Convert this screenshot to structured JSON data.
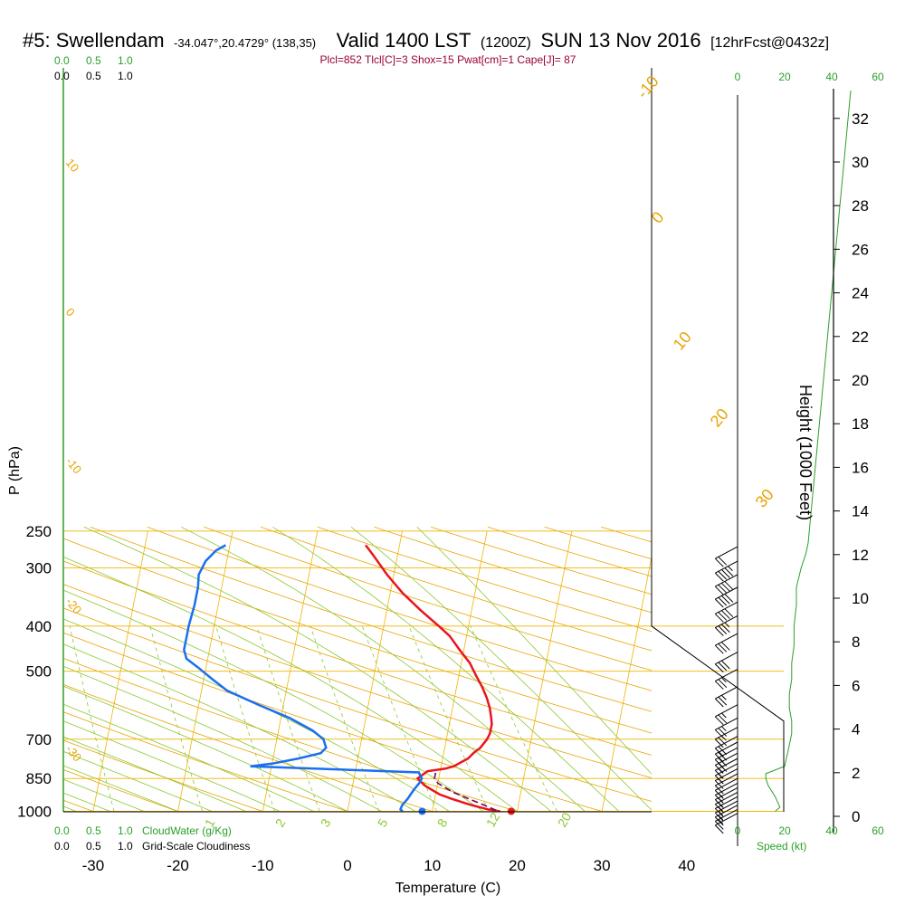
{
  "header": {
    "station": "#5: Swellendam",
    "coords": "-34.047°,20.4729° (138,35)",
    "valid": "Valid 1400 LST",
    "zulu": "(1200Z)",
    "date": "SUN 13 Nov 2016",
    "forecast": "[12hrFcst@0432z]"
  },
  "indices": "Plcl=852 Tlcl[C]=3 Shox=15 Pwat[cm]=1 Cape[J]= 87",
  "colors": {
    "isotherm": "#f0b400",
    "dry_adiabat": "#e8a300",
    "moist_adiabat": "#8cc832",
    "mixing_ratio": "#8cc832",
    "temperature": "#e8161b",
    "dewpoint": "#1b6ff0",
    "parcel": "#77005a",
    "green": "#2aa02a"
  },
  "top_scales": {
    "cloudwater": [
      "0.0",
      "0.5",
      "1.0"
    ],
    "cloudiness": [
      "0.0",
      "0.5",
      "1.0"
    ],
    "speed": [
      "0",
      "20",
      "40",
      "60"
    ]
  },
  "bottom_scales": {
    "cloudwater_ticks": [
      "0.0",
      "0.5",
      "1.0"
    ],
    "cloudwater_label": "CloudWater (g/Kg)",
    "cloudiness_ticks": [
      "0.0",
      "0.5",
      "1.0"
    ],
    "cloudiness_label": "Grid-Scale Cloudiness",
    "speed_ticks": [
      "0",
      "20",
      "40",
      "60"
    ],
    "speed_label": "Speed (kt)"
  },
  "chart_data": {
    "type": "line",
    "title": "#5: Swellendam -34.047°,20.4729° (138,35) Valid 1400 LST (1200Z) SUN 13 Nov 2016 [12hrFcst@0432z]",
    "xlabel": "Temperature (C)",
    "ylabel": "P (hPa)",
    "y2label": "Height (1000 Feet)",
    "x_ticks": [
      -30,
      -20,
      -10,
      0,
      10,
      20,
      30,
      40
    ],
    "xlim": [
      -34,
      45
    ],
    "p_ticks": [
      250,
      300,
      400,
      500,
      700,
      850,
      1000
    ],
    "ylim_hpa": [
      1000,
      250
    ],
    "y_scale": "log",
    "height_ticks": [
      0,
      2,
      4,
      6,
      8,
      10,
      12,
      14,
      16,
      18,
      20,
      22,
      24,
      26,
      28,
      30,
      32
    ],
    "dry_adiabat_labels": [
      -10,
      0,
      10,
      20,
      30
    ],
    "moist_adiabat_labels_left": [
      10,
      0,
      -10,
      -20,
      -30
    ],
    "mixing_ratio_labels": [
      1,
      2,
      3,
      5,
      8,
      12,
      20
    ],
    "series": [
      {
        "name": "Temperature",
        "points": [
          [
            18.0,
            1000
          ],
          [
            16.5,
            990
          ],
          [
            14.5,
            970
          ],
          [
            12.0,
            940
          ],
          [
            10.5,
            920
          ],
          [
            9.5,
            900
          ],
          [
            8.5,
            880
          ],
          [
            7.5,
            850
          ],
          [
            8.5,
            820
          ],
          [
            10.5,
            810
          ],
          [
            11.5,
            800
          ],
          [
            12.0,
            790
          ],
          [
            13.0,
            770
          ],
          [
            13.5,
            750
          ],
          [
            14.2,
            730
          ],
          [
            14.8,
            700
          ],
          [
            15.0,
            680
          ],
          [
            15.0,
            650
          ],
          [
            14.8,
            630
          ],
          [
            14.4,
            600
          ],
          [
            13.8,
            570
          ],
          [
            13.0,
            540
          ],
          [
            12.0,
            510
          ],
          [
            11.0,
            480
          ],
          [
            9.5,
            450
          ],
          [
            8.0,
            420
          ],
          [
            6.5,
            400
          ],
          [
            4.0,
            370
          ],
          [
            1.5,
            340
          ],
          [
            -0.8,
            310
          ],
          [
            -3.0,
            280
          ],
          [
            -4.0,
            268
          ]
        ]
      },
      {
        "name": "Dewpoint",
        "points": [
          [
            6.5,
            1000
          ],
          [
            6.2,
            990
          ],
          [
            6.3,
            970
          ],
          [
            6.8,
            940
          ],
          [
            7.3,
            900
          ],
          [
            7.8,
            870
          ],
          [
            8.0,
            850
          ],
          [
            7.5,
            825
          ],
          [
            -12.5,
            800
          ],
          [
            -10.0,
            790
          ],
          [
            -7.0,
            770
          ],
          [
            -4.5,
            750
          ],
          [
            -4.0,
            730
          ],
          [
            -4.5,
            700
          ],
          [
            -6.0,
            670
          ],
          [
            -9.0,
            630
          ],
          [
            -13.0,
            590
          ],
          [
            -17.0,
            550
          ],
          [
            -19.0,
            520
          ],
          [
            -21.0,
            490
          ],
          [
            -22.5,
            470
          ],
          [
            -23.0,
            450
          ],
          [
            -23.0,
            420
          ],
          [
            -23.0,
            400
          ],
          [
            -22.8,
            360
          ],
          [
            -22.8,
            330
          ],
          [
            -23.0,
            310
          ],
          [
            -22.5,
            290
          ],
          [
            -21.5,
            275
          ],
          [
            -20.5,
            268
          ]
        ]
      },
      {
        "name": "Parcel",
        "points": [
          [
            17.5,
            995
          ],
          [
            16.0,
            970
          ],
          [
            14.0,
            940
          ],
          [
            12.0,
            910
          ],
          [
            11.0,
            890
          ],
          [
            10.0,
            870
          ],
          [
            9.5,
            850
          ],
          [
            9.5,
            830
          ],
          [
            9.5,
            815
          ]
        ]
      }
    ],
    "surface_temperature": 19.3,
    "surface_dewpoint": 8.8,
    "winds_kt": [
      {
        "p": 270,
        "speed": 20,
        "dir": 300
      },
      {
        "p": 290,
        "speed": 45,
        "dir": 280
      },
      {
        "p": 310,
        "speed": 40,
        "dir": 280
      },
      {
        "p": 330,
        "speed": 40,
        "dir": 280
      },
      {
        "p": 355,
        "speed": 40,
        "dir": 285
      },
      {
        "p": 380,
        "speed": 35,
        "dir": 285
      },
      {
        "p": 415,
        "speed": 30,
        "dir": 285
      },
      {
        "p": 455,
        "speed": 30,
        "dir": 285
      },
      {
        "p": 495,
        "speed": 25,
        "dir": 285
      },
      {
        "p": 540,
        "speed": 25,
        "dir": 285
      },
      {
        "p": 590,
        "speed": 25,
        "dir": 285
      },
      {
        "p": 630,
        "speed": 25,
        "dir": 285
      },
      {
        "p": 660,
        "speed": 25,
        "dir": 285
      },
      {
        "p": 690,
        "speed": 20,
        "dir": 285
      },
      {
        "p": 710,
        "speed": 20,
        "dir": 285
      },
      {
        "p": 730,
        "speed": 20,
        "dir": 285
      },
      {
        "p": 750,
        "speed": 20,
        "dir": 285
      },
      {
        "p": 770,
        "speed": 15,
        "dir": 285
      },
      {
        "p": 790,
        "speed": 15,
        "dir": 285
      },
      {
        "p": 810,
        "speed": 15,
        "dir": 285
      },
      {
        "p": 830,
        "speed": 10,
        "dir": 285
      },
      {
        "p": 850,
        "speed": 10,
        "dir": 300
      },
      {
        "p": 870,
        "speed": 15,
        "dir": 300
      },
      {
        "p": 890,
        "speed": 15,
        "dir": 300
      },
      {
        "p": 910,
        "speed": 15,
        "dir": 300
      },
      {
        "p": 930,
        "speed": 15,
        "dir": 300
      },
      {
        "p": 950,
        "speed": 15,
        "dir": 300
      },
      {
        "p": 970,
        "speed": 15,
        "dir": 300
      },
      {
        "p": 990,
        "speed": 15,
        "dir": 300
      },
      {
        "p": 1010,
        "speed": 10,
        "dir": 300
      }
    ],
    "wind_speed_profile_kt": [
      [
        16,
        1000
      ],
      [
        18,
        980
      ],
      [
        16,
        930
      ],
      [
        13,
        880
      ],
      [
        12,
        850
      ],
      [
        12,
        830
      ],
      [
        20,
        800
      ],
      [
        21,
        760
      ],
      [
        22,
        720
      ],
      [
        23,
        680
      ],
      [
        23,
        640
      ],
      [
        22,
        600
      ],
      [
        22,
        560
      ],
      [
        23,
        520
      ],
      [
        23,
        480
      ],
      [
        24,
        440
      ],
      [
        24,
        400
      ],
      [
        25,
        360
      ],
      [
        25,
        330
      ],
      [
        27,
        300
      ],
      [
        29,
        280
      ],
      [
        30,
        265
      ]
    ]
  }
}
